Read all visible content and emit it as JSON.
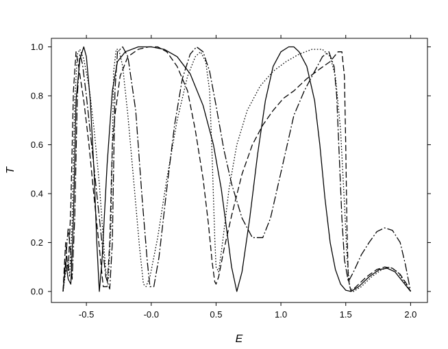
{
  "chart_data": {
    "type": "line",
    "title": "",
    "xlabel": "E",
    "ylabel": "T",
    "xlim": [
      -0.77,
      2.13
    ],
    "ylim": [
      -0.045,
      1.035
    ],
    "x_ticks": [
      -0.5,
      0.0,
      0.5,
      1.0,
      1.5,
      2.0
    ],
    "x_tick_labels": [
      "-0.5",
      "-0.0",
      "0.5",
      "1.0",
      "1.5",
      "2.0"
    ],
    "y_ticks": [
      0.0,
      0.2,
      0.4,
      0.6,
      0.8,
      1.0
    ],
    "y_tick_labels": [
      "0.0",
      "0.2",
      "0.4",
      "0.6",
      "0.8",
      "1.0"
    ],
    "grid": false,
    "legend": "none",
    "series": [
      {
        "style": "solid",
        "points": [
          [
            -0.68,
            0.0
          ],
          [
            -0.66,
            0.12
          ],
          [
            -0.64,
            0.05
          ],
          [
            -0.62,
            0.03
          ],
          [
            -0.6,
            0.3
          ],
          [
            -0.58,
            0.78
          ],
          [
            -0.55,
            0.95
          ],
          [
            -0.52,
            1.0
          ],
          [
            -0.5,
            0.96
          ],
          [
            -0.47,
            0.78
          ],
          [
            -0.44,
            0.48
          ],
          [
            -0.42,
            0.2
          ],
          [
            -0.4,
            0.0
          ],
          [
            -0.38,
            0.12
          ],
          [
            -0.34,
            0.52
          ],
          [
            -0.3,
            0.82
          ],
          [
            -0.26,
            0.94
          ],
          [
            -0.2,
            0.98
          ],
          [
            -0.1,
            1.0
          ],
          [
            0.0,
            1.0
          ],
          [
            0.1,
            0.99
          ],
          [
            0.2,
            0.96
          ],
          [
            0.3,
            0.89
          ],
          [
            0.4,
            0.76
          ],
          [
            0.48,
            0.6
          ],
          [
            0.54,
            0.42
          ],
          [
            0.58,
            0.26
          ],
          [
            0.62,
            0.1
          ],
          [
            0.66,
            0.0
          ],
          [
            0.7,
            0.08
          ],
          [
            0.76,
            0.3
          ],
          [
            0.82,
            0.56
          ],
          [
            0.88,
            0.78
          ],
          [
            0.94,
            0.92
          ],
          [
            1.0,
            0.98
          ],
          [
            1.06,
            1.0
          ],
          [
            1.1,
            1.0
          ],
          [
            1.14,
            0.98
          ],
          [
            1.2,
            0.92
          ],
          [
            1.26,
            0.78
          ],
          [
            1.3,
            0.6
          ],
          [
            1.34,
            0.38
          ],
          [
            1.38,
            0.2
          ],
          [
            1.42,
            0.09
          ],
          [
            1.46,
            0.03
          ],
          [
            1.5,
            0.005
          ],
          [
            1.54,
            0.0
          ],
          [
            1.6,
            0.02
          ],
          [
            1.68,
            0.06
          ],
          [
            1.76,
            0.09
          ],
          [
            1.82,
            0.095
          ],
          [
            1.88,
            0.08
          ],
          [
            1.94,
            0.04
          ],
          [
            2.0,
            0.0
          ]
        ]
      },
      {
        "style": "dashed",
        "points": [
          [
            -0.68,
            0.0
          ],
          [
            -0.67,
            0.1
          ],
          [
            -0.66,
            0.2
          ],
          [
            -0.64,
            0.08
          ],
          [
            -0.62,
            0.35
          ],
          [
            -0.6,
            0.82
          ],
          [
            -0.58,
            0.98
          ],
          [
            -0.56,
            0.92
          ],
          [
            -0.52,
            0.78
          ],
          [
            -0.48,
            0.6
          ],
          [
            -0.44,
            0.38
          ],
          [
            -0.4,
            0.18
          ],
          [
            -0.37,
            0.02
          ],
          [
            -0.34,
            0.02
          ],
          [
            -0.32,
            0.2
          ],
          [
            -0.3,
            0.6
          ],
          [
            -0.28,
            0.72
          ],
          [
            -0.24,
            0.88
          ],
          [
            -0.18,
            0.96
          ],
          [
            -0.1,
            0.99
          ],
          [
            -0.02,
            1.0
          ],
          [
            0.05,
            1.0
          ],
          [
            0.12,
            0.98
          ],
          [
            0.2,
            0.92
          ],
          [
            0.28,
            0.82
          ],
          [
            0.34,
            0.66
          ],
          [
            0.4,
            0.46
          ],
          [
            0.44,
            0.28
          ],
          [
            0.47,
            0.12
          ],
          [
            0.49,
            0.04
          ],
          [
            0.5,
            0.03
          ],
          [
            0.52,
            0.06
          ],
          [
            0.56,
            0.17
          ],
          [
            0.62,
            0.31
          ],
          [
            0.7,
            0.48
          ],
          [
            0.78,
            0.6
          ],
          [
            0.86,
            0.68
          ],
          [
            0.94,
            0.74
          ],
          [
            1.02,
            0.79
          ],
          [
            1.1,
            0.82
          ],
          [
            1.2,
            0.87
          ],
          [
            1.3,
            0.91
          ],
          [
            1.38,
            0.94
          ],
          [
            1.44,
            0.98
          ],
          [
            1.47,
            0.98
          ],
          [
            1.49,
            0.88
          ],
          [
            1.5,
            0.6
          ],
          [
            1.51,
            0.25
          ],
          [
            1.52,
            0.05
          ],
          [
            1.54,
            0.0
          ],
          [
            1.58,
            0.02
          ],
          [
            1.66,
            0.06
          ],
          [
            1.74,
            0.09
          ],
          [
            1.8,
            0.1
          ],
          [
            1.86,
            0.095
          ],
          [
            1.92,
            0.07
          ],
          [
            1.97,
            0.03
          ],
          [
            2.0,
            0.0
          ]
        ]
      },
      {
        "style": "dash-dot",
        "points": [
          [
            -0.68,
            0.0
          ],
          [
            -0.66,
            0.1
          ],
          [
            -0.65,
            0.2
          ],
          [
            -0.64,
            0.26
          ],
          [
            -0.62,
            0.15
          ],
          [
            -0.61,
            0.05
          ],
          [
            -0.59,
            0.3
          ],
          [
            -0.57,
            0.8
          ],
          [
            -0.55,
            0.97
          ],
          [
            -0.53,
            0.93
          ],
          [
            -0.5,
            0.8
          ],
          [
            -0.46,
            0.6
          ],
          [
            -0.42,
            0.4
          ],
          [
            -0.38,
            0.2
          ],
          [
            -0.35,
            0.06
          ],
          [
            -0.32,
            0.01
          ],
          [
            -0.3,
            0.2
          ],
          [
            -0.28,
            0.82
          ],
          [
            -0.26,
            0.98
          ],
          [
            -0.22,
            1.0
          ],
          [
            -0.18,
            0.96
          ],
          [
            -0.12,
            0.74
          ],
          [
            -0.07,
            0.38
          ],
          [
            -0.03,
            0.12
          ],
          [
            -0.01,
            0.02
          ],
          [
            0.02,
            0.02
          ],
          [
            0.06,
            0.14
          ],
          [
            0.12,
            0.42
          ],
          [
            0.18,
            0.68
          ],
          [
            0.24,
            0.87
          ],
          [
            0.3,
            0.97
          ],
          [
            0.35,
            1.0
          ],
          [
            0.4,
            0.98
          ],
          [
            0.45,
            0.9
          ],
          [
            0.5,
            0.76
          ],
          [
            0.56,
            0.58
          ],
          [
            0.62,
            0.44
          ],
          [
            0.7,
            0.3
          ],
          [
            0.78,
            0.22
          ],
          [
            0.86,
            0.22
          ],
          [
            0.92,
            0.3
          ],
          [
            0.98,
            0.44
          ],
          [
            1.04,
            0.58
          ],
          [
            1.1,
            0.72
          ],
          [
            1.18,
            0.82
          ],
          [
            1.26,
            0.9
          ],
          [
            1.32,
            0.96
          ],
          [
            1.37,
            0.98
          ],
          [
            1.41,
            0.92
          ],
          [
            1.43,
            0.8
          ],
          [
            1.45,
            0.55
          ],
          [
            1.47,
            0.3
          ],
          [
            1.49,
            0.13
          ],
          [
            1.52,
            0.04
          ],
          [
            1.56,
            0.08
          ],
          [
            1.62,
            0.15
          ],
          [
            1.68,
            0.2
          ],
          [
            1.74,
            0.245
          ],
          [
            1.8,
            0.26
          ],
          [
            1.86,
            0.25
          ],
          [
            1.92,
            0.2
          ],
          [
            1.96,
            0.11
          ],
          [
            2.0,
            0.0
          ]
        ]
      },
      {
        "style": "dotted",
        "points": [
          [
            -0.68,
            0.0
          ],
          [
            -0.66,
            0.08
          ],
          [
            -0.64,
            0.12
          ],
          [
            -0.63,
            0.06
          ],
          [
            -0.61,
            0.28
          ],
          [
            -0.59,
            0.78
          ],
          [
            -0.57,
            0.97
          ],
          [
            -0.55,
            0.99
          ],
          [
            -0.52,
            0.95
          ],
          [
            -0.48,
            0.84
          ],
          [
            -0.44,
            0.66
          ],
          [
            -0.4,
            0.44
          ],
          [
            -0.37,
            0.22
          ],
          [
            -0.35,
            0.08
          ],
          [
            -0.33,
            0.05
          ],
          [
            -0.31,
            0.28
          ],
          [
            -0.29,
            0.9
          ],
          [
            -0.27,
            0.99
          ],
          [
            -0.25,
            0.99
          ],
          [
            -0.22,
            0.92
          ],
          [
            -0.18,
            0.72
          ],
          [
            -0.13,
            0.42
          ],
          [
            -0.09,
            0.18
          ],
          [
            -0.06,
            0.03
          ],
          [
            -0.04,
            0.02
          ],
          [
            -0.01,
            0.06
          ],
          [
            0.05,
            0.22
          ],
          [
            0.12,
            0.46
          ],
          [
            0.2,
            0.7
          ],
          [
            0.28,
            0.88
          ],
          [
            0.34,
            0.96
          ],
          [
            0.38,
            0.98
          ],
          [
            0.42,
            0.94
          ],
          [
            0.45,
            0.82
          ],
          [
            0.47,
            0.55
          ],
          [
            0.49,
            0.22
          ],
          [
            0.5,
            0.1
          ],
          [
            0.52,
            0.08
          ],
          [
            0.55,
            0.2
          ],
          [
            0.6,
            0.42
          ],
          [
            0.66,
            0.6
          ],
          [
            0.74,
            0.74
          ],
          [
            0.84,
            0.84
          ],
          [
            0.94,
            0.9
          ],
          [
            1.04,
            0.94
          ],
          [
            1.14,
            0.97
          ],
          [
            1.24,
            0.99
          ],
          [
            1.32,
            0.99
          ],
          [
            1.38,
            0.96
          ],
          [
            1.42,
            0.88
          ],
          [
            1.46,
            0.66
          ],
          [
            1.49,
            0.36
          ],
          [
            1.51,
            0.14
          ],
          [
            1.53,
            0.02
          ],
          [
            1.56,
            0.0
          ],
          [
            1.62,
            0.02
          ],
          [
            1.7,
            0.06
          ],
          [
            1.78,
            0.09
          ],
          [
            1.84,
            0.1
          ],
          [
            1.9,
            0.08
          ],
          [
            1.95,
            0.04
          ],
          [
            2.0,
            0.0
          ]
        ]
      }
    ]
  }
}
